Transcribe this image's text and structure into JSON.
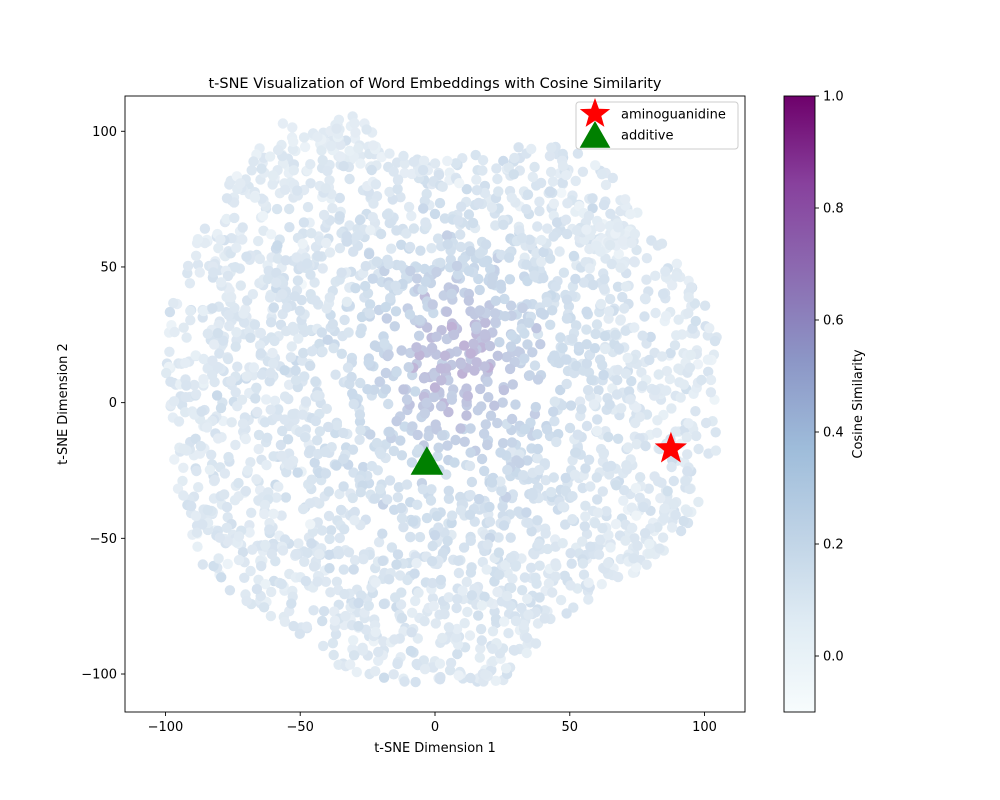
{
  "chart_data": {
    "type": "scatter",
    "title": "t-SNE Visualization of Word Embeddings with Cosine Similarity",
    "xlabel": "t-SNE Dimension 1",
    "ylabel": "t-SNE Dimension 2",
    "xlim": [
      -115,
      115
    ],
    "ylim": [
      -114,
      113
    ],
    "xticks": [
      -100,
      -50,
      0,
      50,
      100
    ],
    "yticks": [
      -100,
      -50,
      0,
      50,
      100
    ],
    "xtick_labels": [
      "−100",
      "−50",
      "0",
      "50",
      "100"
    ],
    "ytick_labels": [
      "−100",
      "−50",
      "0",
      "50",
      "100"
    ],
    "grid": false,
    "legend": {
      "position": "top-right",
      "entries": [
        {
          "label": "aminoguanidine",
          "marker": "star",
          "color": "#ff0000"
        },
        {
          "label": "additive",
          "marker": "triangle",
          "color": "#008000"
        }
      ]
    },
    "highlight_points": [
      {
        "label": "aminoguanidine",
        "x": 87.5,
        "y": -17,
        "marker": "star",
        "color": "#ff0000"
      },
      {
        "label": "additive",
        "x": -3,
        "y": -22,
        "marker": "triangle",
        "color": "#008000"
      }
    ],
    "background_cloud": {
      "description_free": true,
      "color_scale": "BuPu",
      "approx_center": [
        0,
        0
      ],
      "approx_extent_x": [
        -107,
        105
      ],
      "approx_extent_y": [
        -103,
        102
      ],
      "dense_high_similarity_region": {
        "x": [
          -5,
          25
        ],
        "y": [
          -10,
          40
        ]
      }
    },
    "colorbar": {
      "label": "Cosine Similarity",
      "range": [
        -0.1,
        1.0
      ],
      "ticks": [
        0.0,
        0.2,
        0.4,
        0.6,
        0.8,
        1.0
      ],
      "tick_labels": [
        "0.0",
        "0.2",
        "0.4",
        "0.6",
        "0.8",
        "1.0"
      ],
      "colors": [
        "#f7fcfd",
        "#e0ecf4",
        "#bfd3e6",
        "#9ebcda",
        "#8c96c6",
        "#8c6bb1",
        "#88419d",
        "#6e016b"
      ]
    }
  }
}
